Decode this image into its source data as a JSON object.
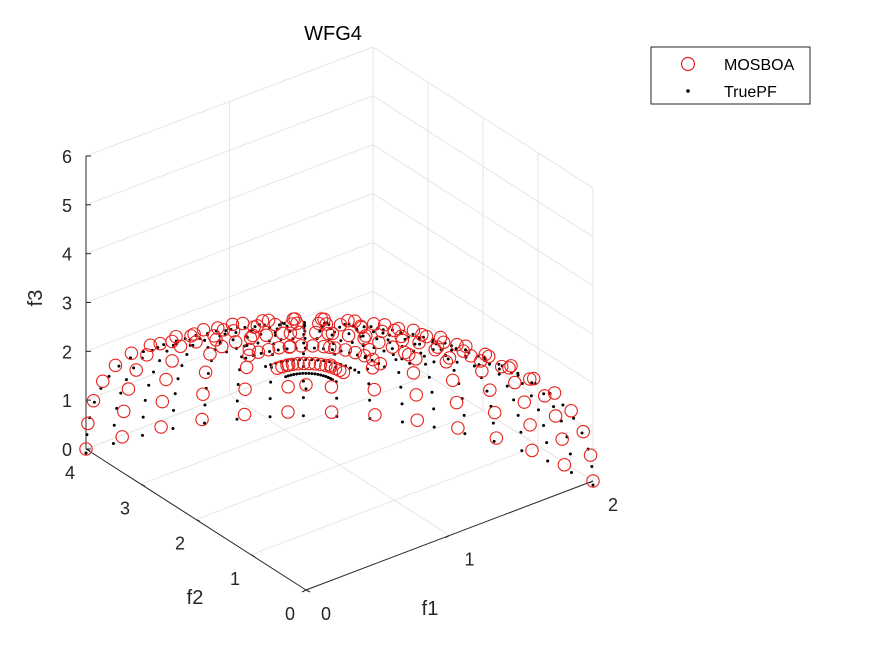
{
  "chart_data": {
    "type": "scatter",
    "dimensions": 3,
    "title": "WFG4",
    "xlabel": "f1",
    "ylabel": "f2",
    "zlabel": "f3",
    "xlim": [
      0,
      2
    ],
    "ylim": [
      0,
      4
    ],
    "zlim": [
      0,
      6
    ],
    "xticks": [
      "0",
      "1",
      "2"
    ],
    "yticks": [
      "0",
      "1",
      "2",
      "3",
      "4"
    ],
    "zticks": [
      "0",
      "1",
      "2",
      "3",
      "4",
      "5",
      "6"
    ],
    "grid": true,
    "legend_position": "top-right",
    "surface": "spherical front with radii 2, 4, 6 (f1/2)^2 + (f2/4)^2 + (f3/6)^2 = 1 on axes clipped at f3=6, points sampled over the quarter sphere",
    "series": [
      {
        "name": "MOSBOA",
        "marker": "open-circle",
        "color": "#e8211d",
        "point_grid": {
          "azimuth_steps": 13,
          "elevation_steps": 12,
          "note": "points distributed on the front from f3 axis to f1-f2 plane"
        }
      },
      {
        "name": "TruePF",
        "marker": "dot",
        "color": "#000000",
        "point_grid": {
          "azimuth_steps": 17,
          "elevation_steps": 17,
          "note": "dense sampling of the true Pareto front"
        }
      }
    ]
  },
  "legend": {
    "items": [
      {
        "label": "MOSBOA",
        "symbol": "circle",
        "color": "#e8211d"
      },
      {
        "label": "TruePF",
        "symbol": "dot",
        "color": "#000000"
      }
    ]
  }
}
